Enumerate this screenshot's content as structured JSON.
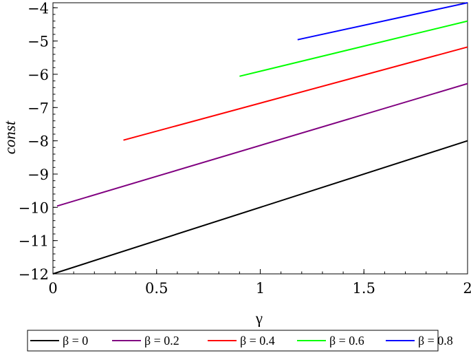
{
  "chart_data": {
    "type": "line",
    "xlabel": "γ",
    "ylabel": "const",
    "xlim": [
      0,
      2
    ],
    "ylim": [
      -12,
      -3.85
    ],
    "x_ticks": [
      "0",
      "0.5",
      "1",
      "1.5",
      "2"
    ],
    "x_tick_values": [
      0,
      0.5,
      1,
      1.5,
      2
    ],
    "y_ticks": [
      "−4",
      "−5",
      "−6",
      "−7",
      "−8",
      "−9",
      "−10",
      "−11",
      "−12"
    ],
    "y_tick_values": [
      -4,
      -5,
      -6,
      -7,
      -8,
      -9,
      -10,
      -11,
      -12
    ],
    "grid": false,
    "legend_position": "bottom",
    "series": [
      {
        "name": "β = 0",
        "color": "#000000",
        "x": [
          0.0,
          2.0
        ],
        "y": [
          -12.0,
          -8.0
        ]
      },
      {
        "name": "β = 0.2",
        "color": "#800080",
        "x": [
          0.02,
          2.0
        ],
        "y": [
          -9.96,
          -6.28
        ]
      },
      {
        "name": "β = 0.4",
        "color": "#ff0000",
        "x": [
          0.34,
          2.0
        ],
        "y": [
          -7.98,
          -5.18
        ]
      },
      {
        "name": "β = 0.6",
        "color": "#00ff00",
        "x": [
          0.9,
          2.0
        ],
        "y": [
          -6.06,
          -4.4
        ]
      },
      {
        "name": "β = 0.8",
        "color": "#0000ff",
        "x": [
          1.18,
          2.0
        ],
        "y": [
          -4.96,
          -3.85
        ]
      }
    ]
  }
}
